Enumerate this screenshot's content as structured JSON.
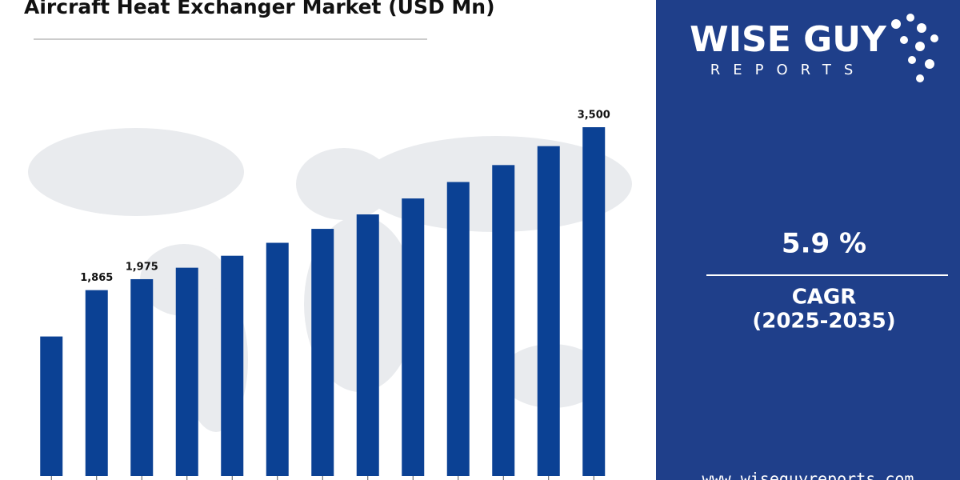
{
  "chart_data": {
    "type": "bar",
    "title": "Aircraft Heat Exchanger Market (USD Mn)",
    "categories": [
      null,
      null,
      null,
      null,
      null,
      null,
      null,
      null,
      null,
      null,
      null,
      null,
      null
    ],
    "values": [
      1400,
      1865,
      1975,
      2090,
      2210,
      2340,
      2480,
      2625,
      2785,
      2950,
      3120,
      3310,
      3500
    ],
    "value_labels": [
      null,
      "1,865",
      "1,975",
      null,
      null,
      null,
      null,
      null,
      null,
      null,
      null,
      null,
      "3,500"
    ],
    "color": "#0b4194"
  },
  "sidebar": {
    "logo_main": "WISE GUY",
    "logo_sub": "REPORTS",
    "cagr_value": "5.9 %",
    "cagr_label": "CAGR",
    "cagr_period": "(2025-2035)",
    "website": "www.wiseguyreports.com"
  }
}
